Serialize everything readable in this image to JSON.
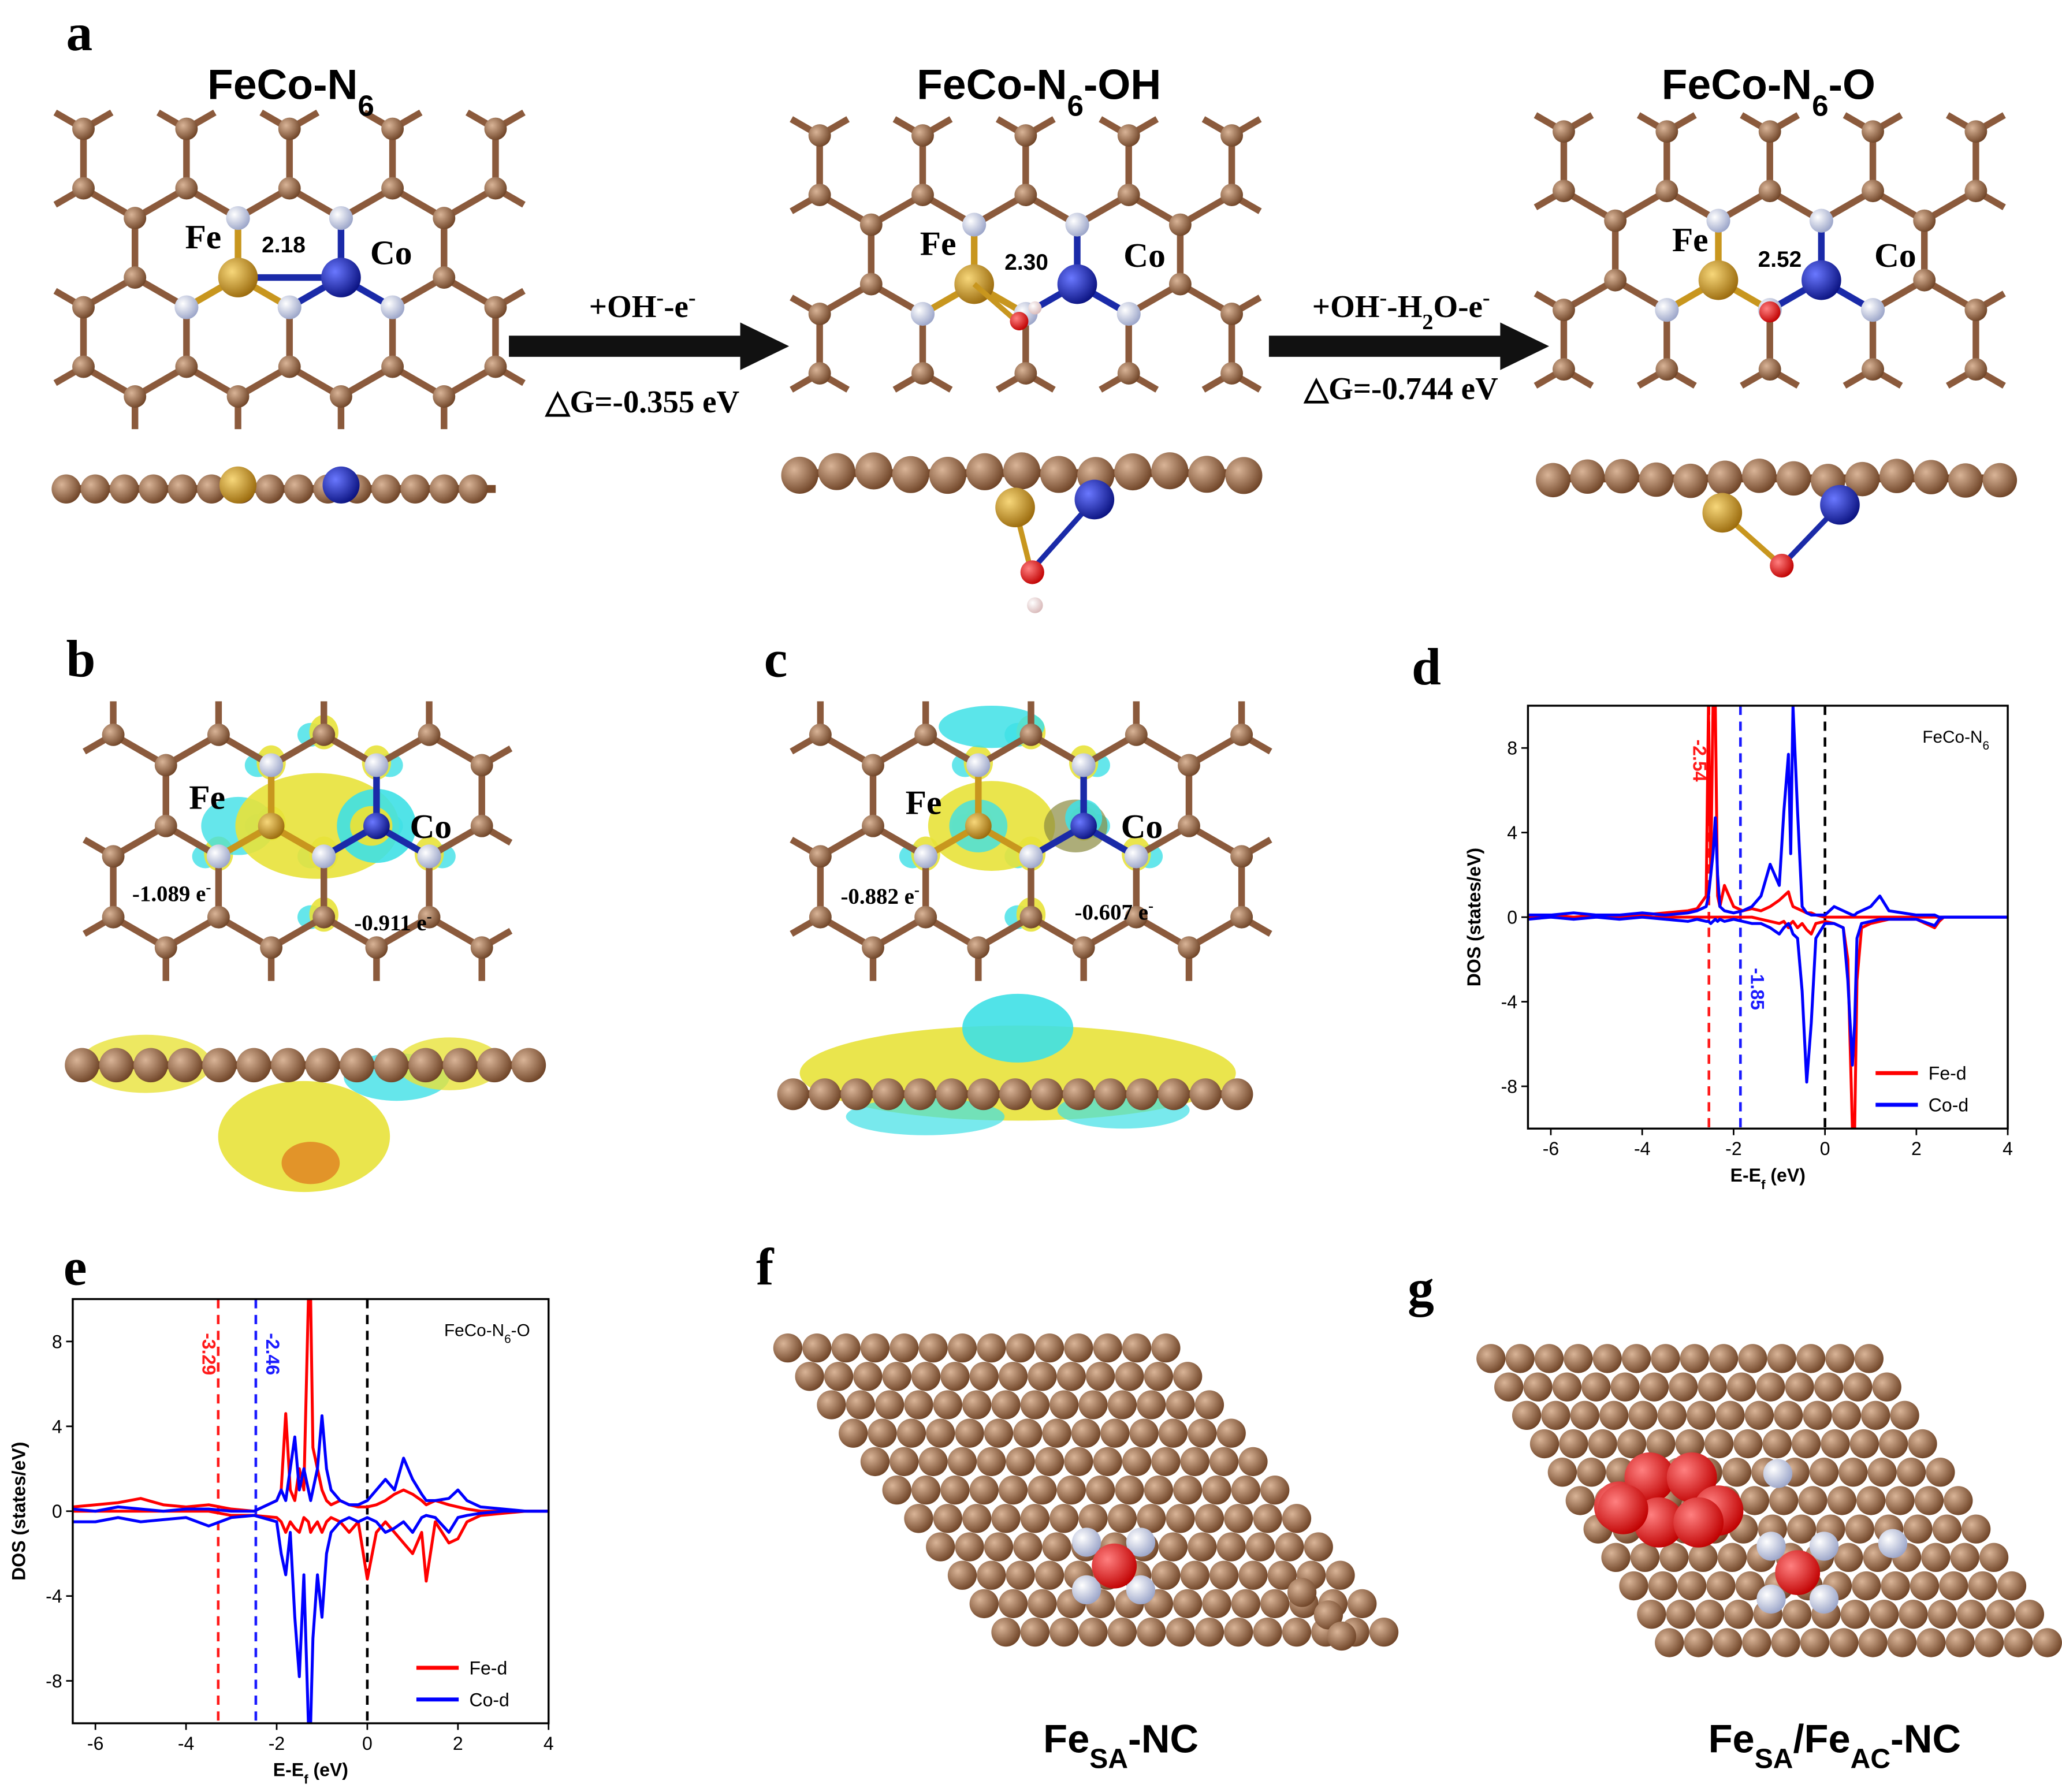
{
  "figure": {
    "panel_labels": [
      "a",
      "b",
      "c",
      "d",
      "e",
      "f",
      "g"
    ],
    "structures": [
      {
        "title": [
          {
            "text": "FeCo-N"
          },
          {
            "text": "6",
            "sub": true
          }
        ],
        "fe": "Fe",
        "co": "Co",
        "distance": "2.18"
      },
      {
        "title": [
          {
            "text": "FeCo-N"
          },
          {
            "text": "6",
            "sub": true
          },
          {
            "text": "-OH"
          }
        ],
        "fe": "Fe",
        "co": "Co",
        "distance": "2.30"
      },
      {
        "title": [
          {
            "text": "FeCo-N"
          },
          {
            "text": "6",
            "sub": true
          },
          {
            "text": "-O"
          }
        ],
        "fe": "Fe",
        "co": "Co",
        "distance": "2.52"
      }
    ],
    "reactions": [
      {
        "text": [
          {
            "text": "+OH"
          },
          {
            "text": "-",
            "sup": true
          },
          {
            "text": "-e"
          },
          {
            "text": "-",
            "sup": true
          }
        ],
        "energy": "△G=-0.355 eV"
      },
      {
        "text": [
          {
            "text": "+OH"
          },
          {
            "text": "-",
            "sup": true
          },
          {
            "text": "-H"
          },
          {
            "text": "2",
            "sub": true
          },
          {
            "text": "O-e"
          },
          {
            "text": "-",
            "sup": true
          }
        ],
        "energy": "△G=-0.744 eV"
      }
    ],
    "charge_maps": [
      {
        "fe": "Fe",
        "co": "Co",
        "fe_charge": [
          {
            "text": "-1.089 e"
          },
          {
            "text": "-",
            "sup": true
          }
        ],
        "co_charge": [
          {
            "text": "-0.911 e"
          },
          {
            "text": "-",
            "sup": true
          }
        ]
      },
      {
        "fe": "Fe",
        "co": "Co",
        "fe_charge": [
          {
            "text": "-0.882 e"
          },
          {
            "text": "-",
            "sup": true
          }
        ],
        "co_charge": [
          {
            "text": "-0.607 e"
          },
          {
            "text": "-",
            "sup": true
          }
        ]
      }
    ],
    "models": [
      [
        {
          "text": "Fe"
        },
        {
          "text": "SA",
          "sub": true
        },
        {
          "text": "-NC"
        }
      ],
      [
        {
          "text": "Fe"
        },
        {
          "text": "SA",
          "sub": true
        },
        {
          "text": "/Fe"
        },
        {
          "text": "AC",
          "sub": true
        },
        {
          "text": "-NC"
        }
      ]
    ]
  },
  "chart_data": [
    {
      "type": "line",
      "annotation": [
        {
          "text": "FeCo-N"
        },
        {
          "text": "6",
          "sub": true
        }
      ],
      "xlabel": [
        {
          "text": "E-E"
        },
        {
          "text": "f",
          "sub": true
        },
        {
          "text": " (eV)"
        }
      ],
      "ylabel": "DOS (states/eV)",
      "xlim": [
        -6.5,
        4
      ],
      "ylim": [
        -10,
        10
      ],
      "xticks": [
        -6,
        -4,
        -2,
        0,
        2,
        4
      ],
      "yticks": [
        -8,
        -4,
        0,
        4,
        8
      ],
      "fermi_level": {
        "x": 0,
        "color": "#000000"
      },
      "vlines": [
        {
          "x": -2.54,
          "color": "#ff1a1a"
        },
        {
          "x": -1.85,
          "color": "#1a1aff"
        }
      ],
      "legend": "lower right",
      "x": [
        -6.5,
        -6,
        -5.5,
        -5,
        -4.5,
        -4,
        -3.5,
        -3,
        -2.8,
        -2.6,
        -2.55,
        -2.5,
        -2.45,
        -2.4,
        -2.35,
        -2.3,
        -2.2,
        -2.0,
        -1.8,
        -1.6,
        -1.4,
        -1.2,
        -1.0,
        -0.9,
        -0.8,
        -0.75,
        -0.7,
        -0.6,
        -0.5,
        -0.4,
        -0.3,
        -0.2,
        0,
        0.2,
        0.4,
        0.5,
        0.6,
        0.65,
        0.7,
        0.8,
        1.0,
        1.2,
        1.4,
        2.0,
        2.4,
        2.5,
        2.6,
        3.0,
        3.5,
        4
      ],
      "series": [
        {
          "name": "Fe-d",
          "color": "#ff0000",
          "values": [
            0,
            0.1,
            0,
            0.1,
            0,
            0.1,
            0.2,
            0.3,
            0.4,
            1,
            10,
            2,
            10,
            10,
            1,
            0.5,
            1.5,
            0.5,
            0.3,
            0.4,
            0.3,
            0.5,
            0.8,
            1,
            1.2,
            0.8,
            0.5,
            0.4,
            0.3,
            0.2,
            0.2,
            0.1,
            0,
            0,
            0,
            0,
            0,
            0,
            0,
            0,
            0,
            0,
            0,
            0,
            0,
            0,
            0,
            0,
            0,
            0
          ],
          "values_down": [
            0,
            0,
            0,
            0,
            0,
            0,
            0,
            0,
            0,
            0,
            0,
            0,
            0,
            0,
            0,
            0,
            0,
            0,
            0,
            0,
            -0.1,
            -0.2,
            -0.3,
            -0.2,
            -0.5,
            -0.3,
            -0.2,
            -0.5,
            -0.3,
            -0.6,
            -0.8,
            -0.3,
            -0.2,
            -0.3,
            -0.5,
            -2,
            -10,
            -10,
            -3,
            -0.5,
            -0.3,
            -0.2,
            -0.1,
            -0.1,
            -0.5,
            -0.2,
            0,
            0,
            0,
            0
          ]
        },
        {
          "name": "Co-d",
          "color": "#0000ff",
          "values": [
            0.1,
            0.1,
            0.2,
            0.1,
            0.1,
            0.2,
            0.1,
            0.2,
            0.3,
            0.5,
            1,
            2,
            3,
            4.7,
            2,
            0.5,
            0.3,
            0.2,
            0.3,
            0.5,
            1,
            2.5,
            1.5,
            5,
            7.7,
            3,
            10,
            5,
            0.5,
            0.2,
            0.1,
            0.1,
            0.1,
            0.5,
            0.3,
            0.2,
            0.1,
            0.1,
            0.2,
            0.3,
            0.5,
            1,
            0.3,
            0.1,
            0.1,
            0,
            0,
            0,
            0,
            0
          ],
          "values_down": [
            -0.1,
            0,
            -0.1,
            0,
            -0.1,
            0,
            -0.1,
            -0.2,
            -0.1,
            -0.2,
            -0.2,
            -0.3,
            -0.2,
            -0.1,
            -0.2,
            -0.1,
            -0.2,
            -0.1,
            -0.2,
            -0.3,
            -0.3,
            -0.5,
            -0.8,
            -0.5,
            -0.3,
            -0.5,
            -0.8,
            -1,
            -3.5,
            -7.8,
            -5,
            -1,
            -0.3,
            -0.3,
            -0.5,
            -3,
            -7,
            -5,
            -1,
            -0.3,
            -0.2,
            -0.1,
            -0.1,
            -0.1,
            -0.4,
            -0.1,
            0,
            0,
            0,
            0
          ]
        }
      ]
    },
    {
      "type": "line",
      "annotation": [
        {
          "text": "FeCo-N"
        },
        {
          "text": "6",
          "sub": true
        },
        {
          "text": "-O"
        }
      ],
      "xlabel": [
        {
          "text": "E-E"
        },
        {
          "text": "f",
          "sub": true
        },
        {
          "text": " (eV)"
        }
      ],
      "ylabel": "DOS (states/eV)",
      "xlim": [
        -6.5,
        4
      ],
      "ylim": [
        -10,
        10
      ],
      "xticks": [
        -6,
        -4,
        -2,
        0,
        2,
        4
      ],
      "yticks": [
        -8,
        -4,
        0,
        4,
        8
      ],
      "fermi_level": {
        "x": 0,
        "color": "#000000"
      },
      "vlines": [
        {
          "x": -3.29,
          "color": "#ff1a1a"
        },
        {
          "x": -2.46,
          "color": "#1a1aff"
        }
      ],
      "legend": "lower right",
      "x": [
        -6.5,
        -6,
        -5.5,
        -5,
        -4.5,
        -4,
        -3.5,
        -3,
        -2.5,
        -2,
        -1.9,
        -1.8,
        -1.7,
        -1.6,
        -1.5,
        -1.4,
        -1.3,
        -1.25,
        -1.2,
        -1.1,
        -1.0,
        -0.9,
        -0.8,
        -0.6,
        -0.4,
        -0.2,
        0,
        0.2,
        0.4,
        0.6,
        0.8,
        1.0,
        1.2,
        1.3,
        1.5,
        1.8,
        2.0,
        2.2,
        2.5,
        3,
        3.5,
        4
      ],
      "series": [
        {
          "name": "Fe-d",
          "color": "#ff0000",
          "values": [
            0.2,
            0.3,
            0.4,
            0.6,
            0.3,
            0.2,
            0.3,
            0.1,
            0,
            0.5,
            1,
            4.6,
            1,
            0.5,
            2,
            1,
            10,
            10,
            3,
            2,
            1,
            0.5,
            0.3,
            0.5,
            0.3,
            0.2,
            0.2,
            0.3,
            0.5,
            0.8,
            1,
            0.8,
            0.5,
            0.3,
            0.5,
            0.3,
            0.2,
            0.1,
            0,
            0,
            0,
            0
          ],
          "values_down": [
            0,
            0,
            0,
            0,
            0,
            0,
            0,
            -0.2,
            -0.2,
            -0.3,
            -0.5,
            -1,
            -0.5,
            -0.8,
            -1,
            -0.3,
            -0.5,
            -1,
            -0.8,
            -0.5,
            -1,
            -0.5,
            -0.3,
            -0.5,
            -1,
            -0.5,
            -3.2,
            -1,
            -0.5,
            -1,
            -1.5,
            -2,
            -1,
            -3.3,
            -0.5,
            -1.5,
            -1.3,
            -0.5,
            -0.2,
            -0.1,
            0,
            0
          ]
        },
        {
          "name": "Co-d",
          "color": "#0000ff",
          "values": [
            0.1,
            0,
            0.2,
            0.1,
            0,
            0.1,
            0.1,
            0,
            0,
            0.5,
            1,
            0.5,
            2,
            3.5,
            1,
            2,
            1,
            0.5,
            1,
            2,
            4.5,
            2,
            1,
            0.5,
            0.3,
            0.3,
            0.5,
            1,
            1.5,
            1,
            2.5,
            1.5,
            0.8,
            0.5,
            0.5,
            0.6,
            1,
            0.5,
            0.2,
            0.1,
            0,
            0
          ],
          "values_down": [
            -0.5,
            -0.5,
            -0.3,
            -0.5,
            -0.4,
            -0.3,
            -0.7,
            -0.3,
            -0.2,
            -0.5,
            -2,
            -3,
            -1,
            -5,
            -7.8,
            -3,
            -10,
            -10,
            -6,
            -3,
            -5,
            -2,
            -1,
            -0.5,
            -0.3,
            -0.5,
            -0.3,
            -0.5,
            -1,
            -0.8,
            -0.5,
            -1,
            -0.3,
            -0.2,
            -0.3,
            -1,
            -0.3,
            -0.2,
            -0.1,
            0,
            0,
            0
          ]
        }
      ]
    }
  ]
}
